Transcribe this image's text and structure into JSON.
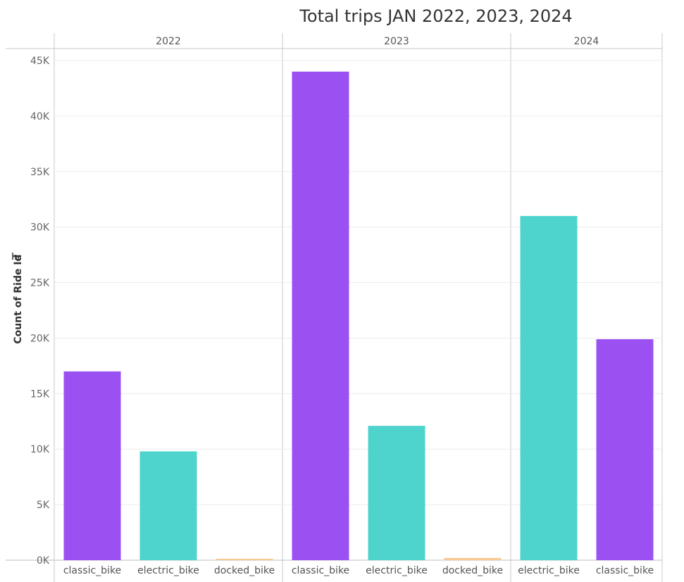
{
  "chart_data": {
    "type": "bar",
    "title": "Total trips JAN 2022,  2023, 2024",
    "ylabel": "Count of Ride Id",
    "xlabel": "",
    "ylim": [
      0,
      45000
    ],
    "y_ticks": [
      0,
      5000,
      10000,
      15000,
      20000,
      25000,
      30000,
      35000,
      40000,
      45000
    ],
    "y_tick_labels": [
      "0K",
      "5K",
      "10K",
      "15K",
      "20K",
      "25K",
      "30K",
      "35K",
      "40K",
      "45K"
    ],
    "grid": true,
    "sort_indicator_icon": "sort-descending-icon",
    "colors": {
      "classic_bike": "#9b50f1",
      "electric_bike": "#4ed4cc",
      "docked_bike": "#f6c992"
    },
    "panels": [
      {
        "header": "2022",
        "bars": [
          {
            "category": "classic_bike",
            "value": 17000
          },
          {
            "category": "electric_bike",
            "value": 9800
          },
          {
            "category": "docked_bike",
            "value": 100
          }
        ]
      },
      {
        "header": "2023",
        "bars": [
          {
            "category": "classic_bike",
            "value": 44000
          },
          {
            "category": "electric_bike",
            "value": 12100
          },
          {
            "category": "docked_bike",
            "value": 200
          }
        ]
      },
      {
        "header": "2024",
        "bars": [
          {
            "category": "electric_bike",
            "value": 31000
          },
          {
            "category": "classic_bike",
            "value": 19900
          }
        ]
      }
    ]
  }
}
